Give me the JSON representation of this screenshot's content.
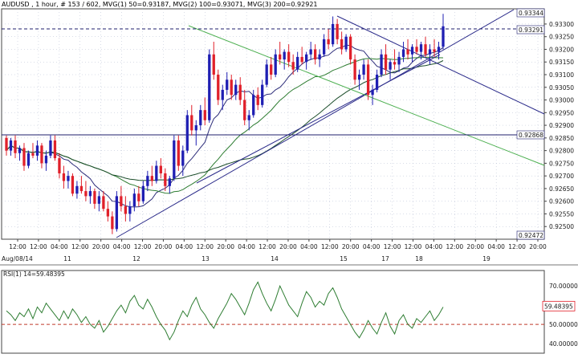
{
  "header": {
    "symbol": "AUDUSD",
    "text": "AUDUSD , 1 hour, # 153 / 602, MVG(1) 50=0.93187, MVG(2) 100=0.93071, MVG(3) 200=0.92921"
  },
  "colors": {
    "bull": "#1f1fb3",
    "bear": "#e0202a",
    "ma50": "#2d2d7a",
    "ma100": "#2e7d32",
    "ma200": "#1b4d2a",
    "trend_green": "#4caf50",
    "trendline": "#2b2b8a",
    "level": "#1f1f6e",
    "rsi_line": "#2e7d32",
    "rsi_50": "#c0392b",
    "grid": "#9fa9c4"
  },
  "chart_data": {
    "type": "candlestick",
    "instrument": "AUDUSD",
    "timeframe": "1 hour",
    "bar_count": 153,
    "ylim": [
      0.9245,
      0.9336
    ],
    "yticks": [
      "0.92500",
      "0.92550",
      "0.92600",
      "0.92650",
      "0.92700",
      "0.92750",
      "0.92800",
      "0.92850",
      "0.92900",
      "0.92950",
      "0.93000",
      "0.93050",
      "0.93100",
      "0.93150",
      "0.93200",
      "0.93250",
      "0.93300"
    ],
    "xticks": [
      "12:00",
      "12:00",
      "04:00",
      "12:00",
      "20:00",
      "04:00",
      "12:00",
      "20:00",
      "04:00",
      "12:00",
      "20:00",
      "04:00",
      "12:00",
      "20:00",
      "04:00",
      "12:00",
      "20:00",
      "04:00",
      "12:00",
      "12:00",
      "04:00",
      "12:00",
      "20:00",
      "04:00",
      "12:00",
      "20:00"
    ],
    "date_row": [
      "Aug/08/14",
      "11",
      "12",
      "13",
      "14",
      "15",
      "17",
      "18",
      "19"
    ],
    "price_labels": [
      {
        "text": "0.93344",
        "value": 0.93344,
        "kind": "level"
      },
      {
        "text": "0.93291",
        "value": 0.93291,
        "kind": "current"
      },
      {
        "text": "0.92868",
        "value": 0.92868,
        "kind": "level"
      },
      {
        "text": "0.92472",
        "value": 0.92472,
        "kind": "level"
      }
    ],
    "series": [
      {
        "name": "MVG(1) 50",
        "value": 0.93187
      },
      {
        "name": "MVG(2) 100",
        "value": 0.93071
      },
      {
        "name": "MVG(3) 200",
        "value": 0.92921
      }
    ],
    "ohlc": [
      [
        0.9285,
        0.9286,
        0.9278,
        0.928
      ],
      [
        0.928,
        0.9285,
        0.9278,
        0.9284
      ],
      [
        0.9284,
        0.9286,
        0.9277,
        0.9279
      ],
      [
        0.9279,
        0.9282,
        0.9276,
        0.9281
      ],
      [
        0.9281,
        0.9283,
        0.9272,
        0.9274
      ],
      [
        0.9274,
        0.928,
        0.9273,
        0.9279
      ],
      [
        0.9279,
        0.9283,
        0.9277,
        0.9278
      ],
      [
        0.9278,
        0.9284,
        0.9276,
        0.9282
      ],
      [
        0.9282,
        0.9283,
        0.9273,
        0.9275
      ],
      [
        0.9275,
        0.928,
        0.9272,
        0.9278
      ],
      [
        0.9278,
        0.9286,
        0.9277,
        0.9284
      ],
      [
        0.9284,
        0.9286,
        0.9276,
        0.9277
      ],
      [
        0.9277,
        0.9279,
        0.9269,
        0.9271
      ],
      [
        0.9271,
        0.9274,
        0.9265,
        0.9268
      ],
      [
        0.9268,
        0.9272,
        0.9265,
        0.927
      ],
      [
        0.927,
        0.9271,
        0.9262,
        0.9263
      ],
      [
        0.9263,
        0.9268,
        0.9261,
        0.9266
      ],
      [
        0.9266,
        0.927,
        0.9263,
        0.9264
      ],
      [
        0.9264,
        0.9268,
        0.926,
        0.9262
      ],
      [
        0.9262,
        0.9266,
        0.9259,
        0.9264
      ],
      [
        0.9264,
        0.9265,
        0.9257,
        0.9259
      ],
      [
        0.9259,
        0.9264,
        0.9256,
        0.9262
      ],
      [
        0.9262,
        0.9264,
        0.9256,
        0.9257
      ],
      [
        0.9257,
        0.926,
        0.9252,
        0.9254
      ],
      [
        0.9254,
        0.9256,
        0.9247,
        0.9249
      ],
      [
        0.9249,
        0.9264,
        0.9248,
        0.9262
      ],
      [
        0.9262,
        0.9266,
        0.9256,
        0.9258
      ],
      [
        0.9258,
        0.9262,
        0.9252,
        0.9255
      ],
      [
        0.9255,
        0.926,
        0.9252,
        0.9258
      ],
      [
        0.9258,
        0.9265,
        0.9256,
        0.9263
      ],
      [
        0.9263,
        0.9266,
        0.9258,
        0.926
      ],
      [
        0.926,
        0.9268,
        0.9259,
        0.9266
      ],
      [
        0.9266,
        0.9272,
        0.9264,
        0.927
      ],
      [
        0.927,
        0.9274,
        0.9266,
        0.9268
      ],
      [
        0.9268,
        0.9276,
        0.9267,
        0.9274
      ],
      [
        0.9274,
        0.9277,
        0.9269,
        0.9271
      ],
      [
        0.9271,
        0.9273,
        0.9264,
        0.9266
      ],
      [
        0.9266,
        0.927,
        0.9263,
        0.9269
      ],
      [
        0.9269,
        0.9286,
        0.9268,
        0.9284
      ],
      [
        0.9284,
        0.9286,
        0.9272,
        0.9274
      ],
      [
        0.9274,
        0.9282,
        0.927,
        0.928
      ],
      [
        0.928,
        0.9296,
        0.9279,
        0.9294
      ],
      [
        0.9294,
        0.9298,
        0.9286,
        0.9288
      ],
      [
        0.9288,
        0.9292,
        0.9282,
        0.929
      ],
      [
        0.929,
        0.9298,
        0.9288,
        0.9296
      ],
      [
        0.9296,
        0.9301,
        0.929,
        0.9292
      ],
      [
        0.9292,
        0.932,
        0.9291,
        0.9318
      ],
      [
        0.9318,
        0.9323,
        0.9308,
        0.931
      ],
      [
        0.931,
        0.9312,
        0.9298,
        0.93
      ],
      [
        0.93,
        0.9306,
        0.9296,
        0.9304
      ],
      [
        0.9304,
        0.9311,
        0.9302,
        0.9308
      ],
      [
        0.9308,
        0.931,
        0.93,
        0.9302
      ],
      [
        0.9302,
        0.9308,
        0.93,
        0.9306
      ],
      [
        0.9306,
        0.9309,
        0.9298,
        0.93
      ],
      [
        0.93,
        0.9304,
        0.929,
        0.9292
      ],
      [
        0.9292,
        0.9296,
        0.9288,
        0.9294
      ],
      [
        0.9294,
        0.9304,
        0.9293,
        0.9302
      ],
      [
        0.9302,
        0.9305,
        0.9296,
        0.9298
      ],
      [
        0.9298,
        0.9308,
        0.9297,
        0.9306
      ],
      [
        0.9306,
        0.9316,
        0.9305,
        0.9314
      ],
      [
        0.9314,
        0.9317,
        0.9308,
        0.931
      ],
      [
        0.931,
        0.932,
        0.9309,
        0.9318
      ],
      [
        0.9318,
        0.9323,
        0.9314,
        0.9316
      ],
      [
        0.9316,
        0.932,
        0.9312,
        0.9319
      ],
      [
        0.9319,
        0.9322,
        0.9313,
        0.9315
      ],
      [
        0.9315,
        0.9318,
        0.931,
        0.9312
      ],
      [
        0.9312,
        0.9319,
        0.9311,
        0.9317
      ],
      [
        0.9317,
        0.9321,
        0.9314,
        0.9315
      ],
      [
        0.9315,
        0.9319,
        0.9312,
        0.9318
      ],
      [
        0.9318,
        0.9323,
        0.9316,
        0.932
      ],
      [
        0.932,
        0.9322,
        0.9314,
        0.9316
      ],
      [
        0.9316,
        0.932,
        0.9313,
        0.9318
      ],
      [
        0.9318,
        0.9326,
        0.9317,
        0.9324
      ],
      [
        0.9324,
        0.9328,
        0.932,
        0.9322
      ],
      [
        0.9322,
        0.9333,
        0.9321,
        0.933
      ],
      [
        0.933,
        0.9332,
        0.9322,
        0.9324
      ],
      [
        0.9324,
        0.9327,
        0.9318,
        0.932
      ],
      [
        0.932,
        0.9326,
        0.9319,
        0.9325
      ],
      [
        0.9325,
        0.9326,
        0.9314,
        0.9316
      ],
      [
        0.9316,
        0.9318,
        0.9306,
        0.9308
      ],
      [
        0.9308,
        0.9312,
        0.9304,
        0.931
      ],
      [
        0.931,
        0.9316,
        0.9308,
        0.9314
      ],
      [
        0.9314,
        0.9316,
        0.93,
        0.9302
      ],
      [
        0.9302,
        0.9306,
        0.9298,
        0.9304
      ],
      [
        0.9304,
        0.9312,
        0.9303,
        0.931
      ],
      [
        0.931,
        0.932,
        0.9309,
        0.9318
      ],
      [
        0.9318,
        0.9322,
        0.931,
        0.9312
      ],
      [
        0.9312,
        0.9316,
        0.9308,
        0.9315
      ],
      [
        0.9315,
        0.932,
        0.9312,
        0.9314
      ],
      [
        0.9314,
        0.9319,
        0.9311,
        0.9317
      ],
      [
        0.9317,
        0.9323,
        0.9315,
        0.932
      ],
      [
        0.932,
        0.9324,
        0.9316,
        0.9318
      ],
      [
        0.9318,
        0.9322,
        0.9315,
        0.9321
      ],
      [
        0.9321,
        0.9324,
        0.9318,
        0.9319
      ],
      [
        0.9319,
        0.9323,
        0.9316,
        0.9322
      ],
      [
        0.9322,
        0.9325,
        0.9317,
        0.9318
      ],
      [
        0.9318,
        0.9322,
        0.9314,
        0.932
      ],
      [
        0.932,
        0.9324,
        0.9317,
        0.9319
      ],
      [
        0.9319,
        0.9323,
        0.9316,
        0.9321
      ],
      [
        0.9321,
        0.9334,
        0.932,
        0.93291
      ]
    ],
    "rsi": {
      "label": "RSI(1) 14=59.48395",
      "value": 59.48395,
      "ylim": [
        35,
        78
      ],
      "yticks": [
        "70.00000",
        "50.00000",
        "40.00000"
      ],
      "values": [
        57,
        55,
        52,
        56,
        54,
        58,
        53,
        59,
        56,
        61,
        58,
        55,
        52,
        57,
        53,
        58,
        55,
        51,
        54,
        50,
        48,
        52,
        46,
        49,
        53,
        57,
        60,
        56,
        62,
        65,
        60,
        58,
        63,
        59,
        54,
        50,
        47,
        42,
        46,
        52,
        57,
        54,
        60,
        64,
        58,
        55,
        51,
        48,
        53,
        57,
        61,
        66,
        63,
        59,
        55,
        61,
        68,
        72,
        66,
        61,
        57,
        63,
        70,
        65,
        60,
        57,
        54,
        61,
        67,
        64,
        59,
        62,
        60,
        66,
        69,
        64,
        58,
        54,
        50,
        46,
        43,
        47,
        52,
        48,
        45,
        51,
        56,
        49,
        45,
        52,
        55,
        50,
        48,
        53,
        51,
        54,
        57,
        52,
        55,
        59
      ]
    }
  }
}
